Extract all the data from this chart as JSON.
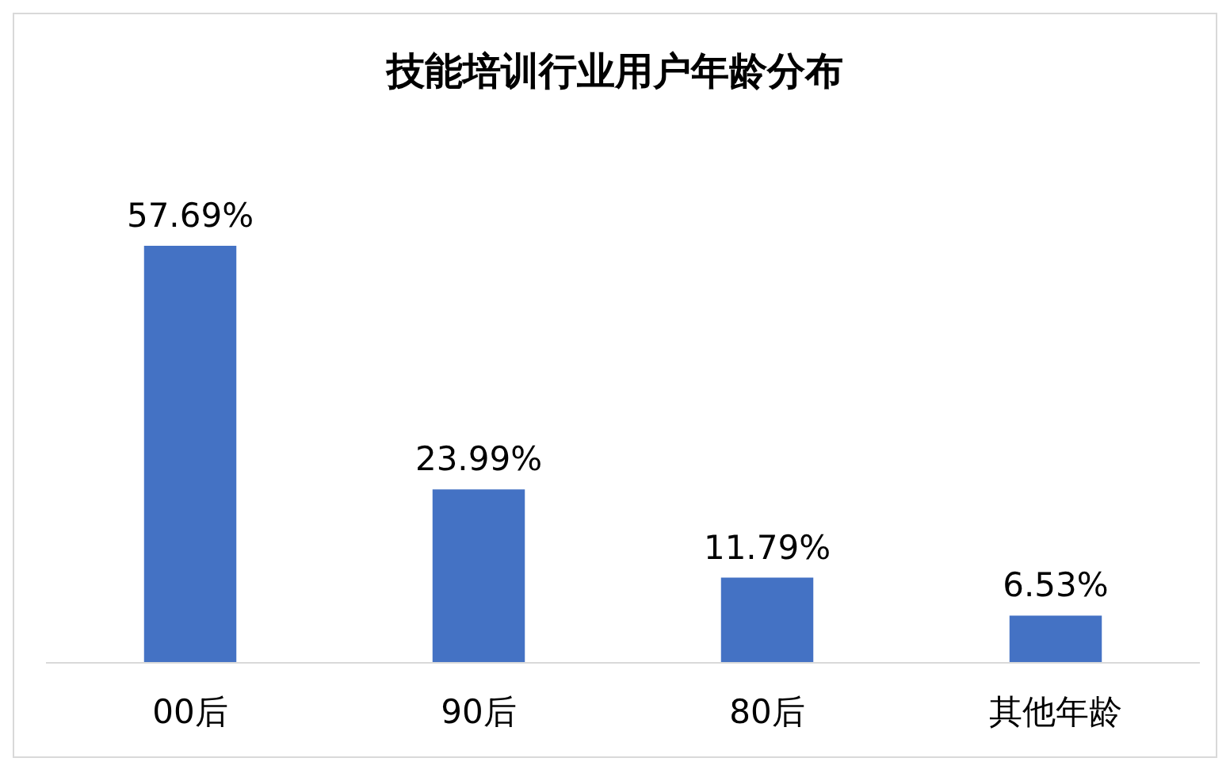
{
  "chart_data": {
    "type": "bar",
    "title": "技能培训行业用户年龄分布",
    "categories": [
      "00后",
      "90后",
      "80后",
      "其他年龄"
    ],
    "values": [
      57.69,
      23.99,
      11.79,
      6.53
    ],
    "color": "#4472c4",
    "value_labels": [
      "57.69%",
      "23.99%",
      "11.79%",
      "6.53%"
    ],
    "tick_labels": "x"
  }
}
